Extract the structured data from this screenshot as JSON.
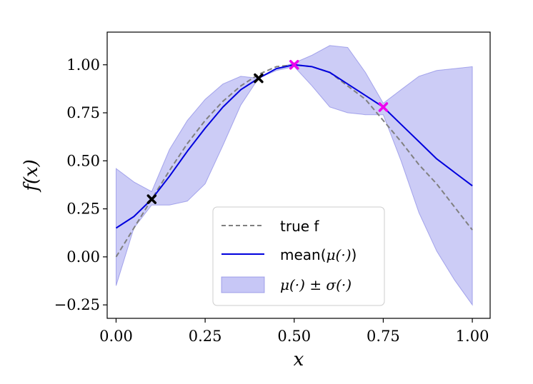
{
  "chart_data": {
    "type": "line",
    "xlabel": "x",
    "ylabel": "f(x)",
    "xlim": [
      -0.025,
      1.05
    ],
    "ylim": [
      -0.32,
      1.17
    ],
    "xticks": [
      "0.00",
      "0.25",
      "0.50",
      "0.75",
      "1.00"
    ],
    "yticks": [
      "−0.25",
      "0.00",
      "0.25",
      "0.50",
      "0.75",
      "1.00"
    ],
    "grid": false,
    "legend_position": "bottom-center",
    "legend": {
      "true_f": "true f",
      "mean_prefix": "mean(",
      "mean_math": "μ(·)",
      "mean_suffix": ")",
      "band": "μ(·) ± σ(·)"
    },
    "x": [
      0.0,
      0.05,
      0.1,
      0.15,
      0.2,
      0.25,
      0.3,
      0.35,
      0.4,
      0.45,
      0.5,
      0.55,
      0.6,
      0.65,
      0.7,
      0.75,
      0.8,
      0.85,
      0.9,
      0.95,
      1.0
    ],
    "series": [
      {
        "name": "true f",
        "style": "dashed",
        "color": "#808080",
        "values": [
          0.0,
          0.15,
          0.3,
          0.45,
          0.59,
          0.71,
          0.81,
          0.89,
          0.95,
          0.99,
          1.0,
          0.99,
          0.96,
          0.89,
          0.82,
          0.71,
          0.6,
          0.48,
          0.38,
          0.26,
          0.14
        ]
      },
      {
        "name": "mean(μ(·))",
        "style": "solid",
        "color": "#0000dd",
        "values": [
          0.15,
          0.21,
          0.3,
          0.42,
          0.55,
          0.67,
          0.78,
          0.87,
          0.93,
          0.98,
          1.0,
          0.99,
          0.96,
          0.9,
          0.84,
          0.78,
          0.69,
          0.6,
          0.51,
          0.44,
          0.37
        ]
      }
    ],
    "band": {
      "name": "μ(·) ± σ(·)",
      "color": "#9999ee",
      "upper": [
        0.46,
        0.39,
        0.34,
        0.56,
        0.71,
        0.82,
        0.9,
        0.94,
        0.93,
        0.98,
        1.01,
        1.05,
        1.1,
        1.09,
        0.96,
        0.8,
        0.87,
        0.94,
        0.97,
        0.98,
        0.99
      ],
      "lower": [
        -0.15,
        0.15,
        0.27,
        0.27,
        0.29,
        0.38,
        0.58,
        0.79,
        0.93,
        0.97,
        0.99,
        0.89,
        0.78,
        0.75,
        0.74,
        0.74,
        0.5,
        0.23,
        0.03,
        -0.12,
        -0.25
      ]
    },
    "observations": [
      {
        "x": 0.1,
        "y": 0.3,
        "color": "#000000"
      },
      {
        "x": 0.4,
        "y": 0.93,
        "color": "#000000"
      },
      {
        "x": 0.5,
        "y": 1.0,
        "color": "#ee00ee"
      },
      {
        "x": 0.75,
        "y": 0.78,
        "color": "#ee00ee"
      }
    ]
  }
}
